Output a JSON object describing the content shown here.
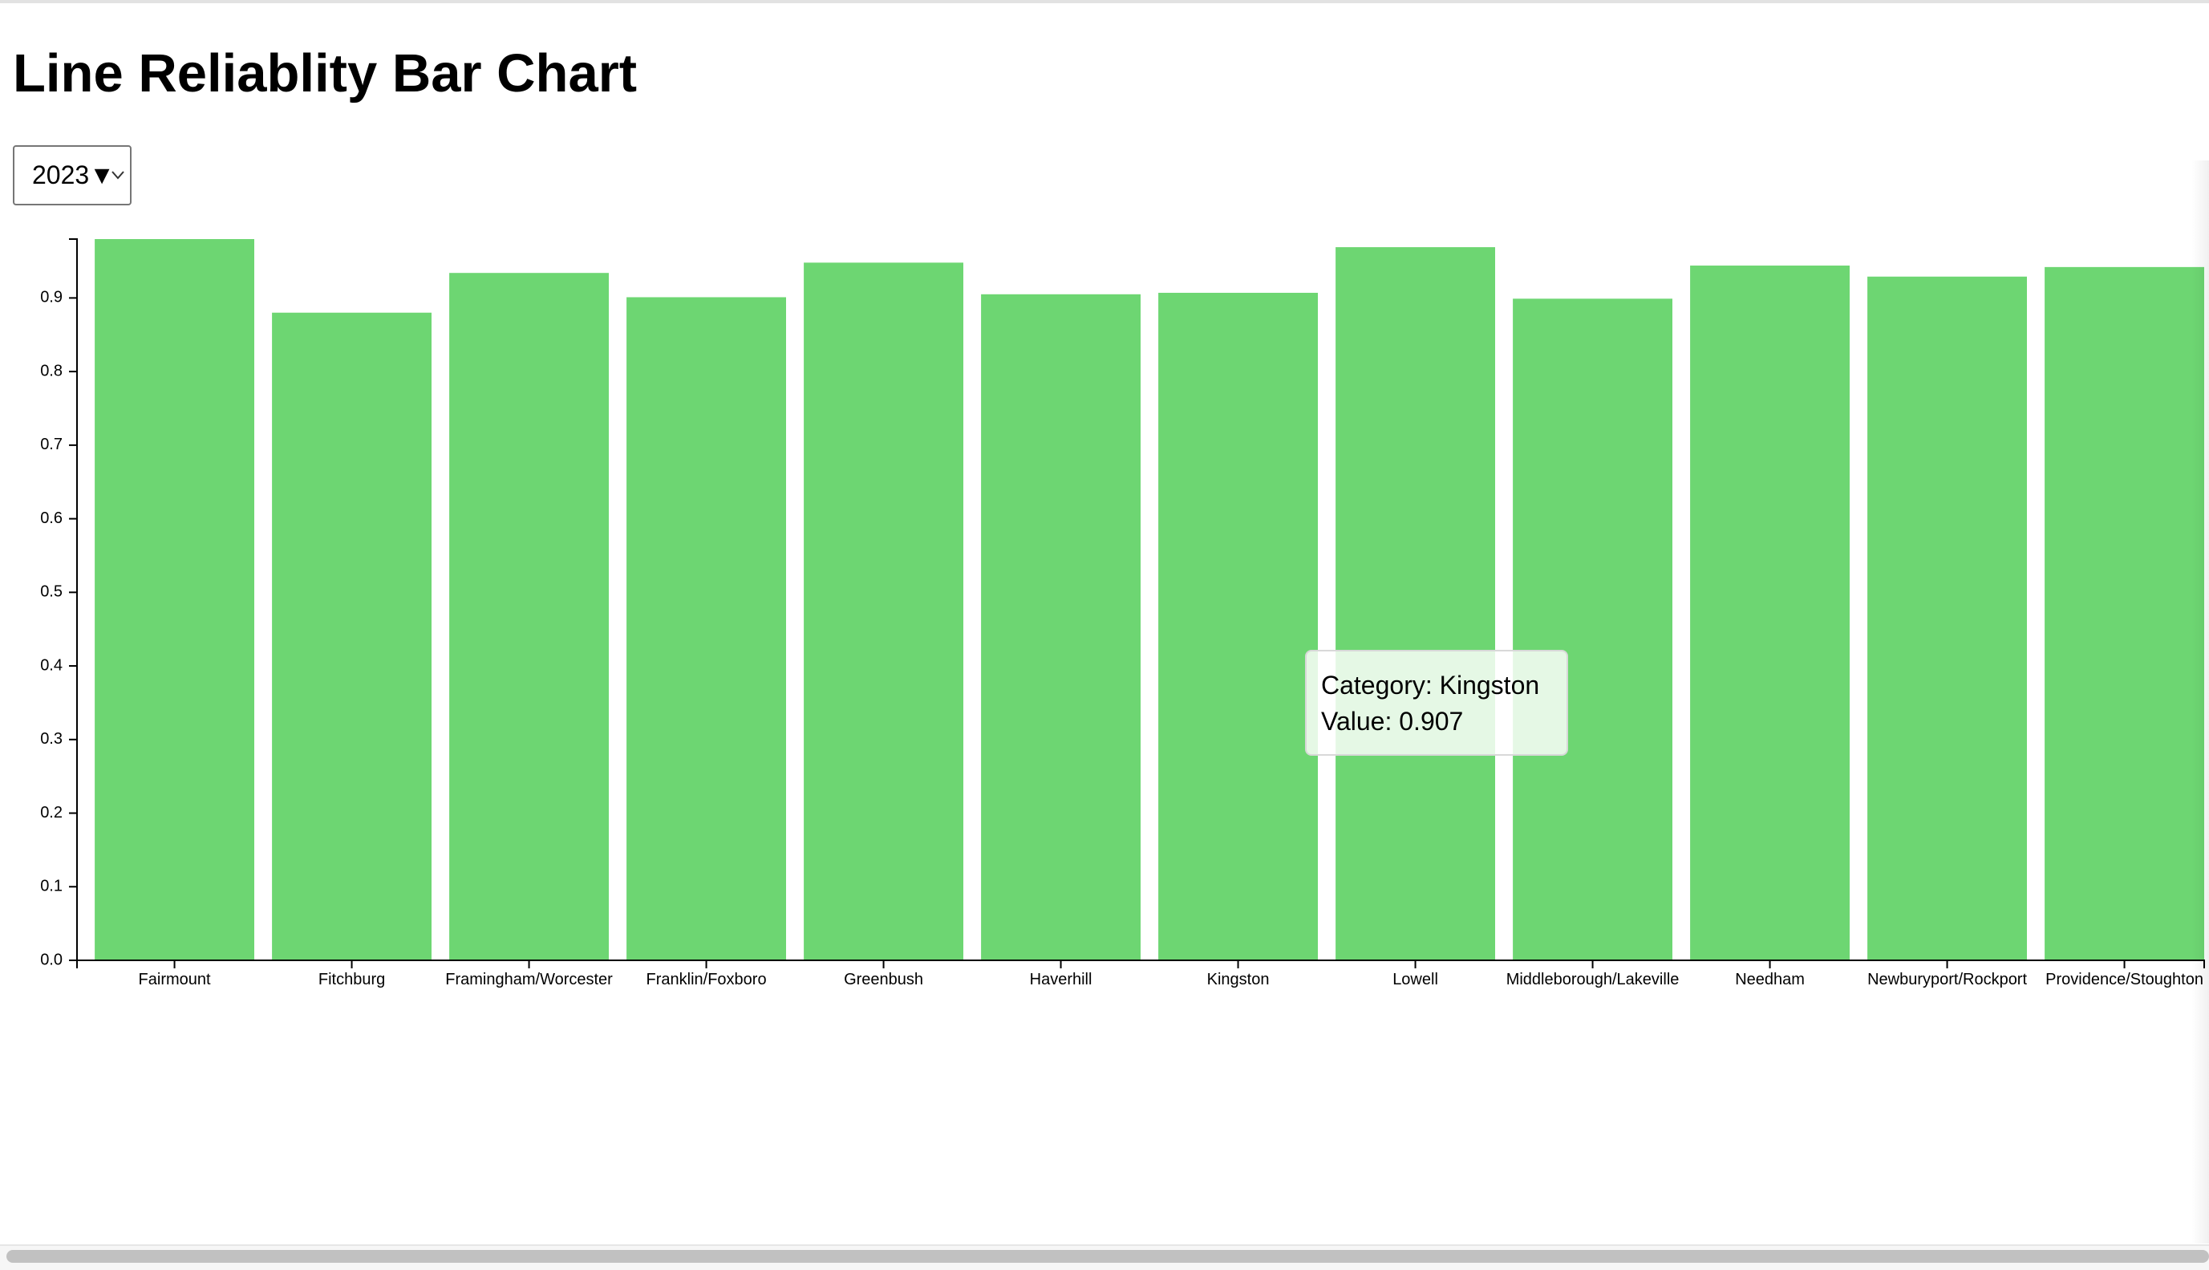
{
  "page": {
    "title": "Line Reliablity Bar Chart"
  },
  "controls": {
    "year_select": {
      "value": "2023▼"
    }
  },
  "tooltip": {
    "category_line": "Category: Kingston",
    "value_line": "Value: 0.907"
  },
  "colors": {
    "bar": "#6dd672",
    "axis": "#000000",
    "background": "#ffffff"
  },
  "chart_data": {
    "type": "bar",
    "title": "Line Reliablity Bar Chart",
    "xlabel": "",
    "ylabel": "",
    "ylim": [
      0,
      0.98
    ],
    "yticks": [
      0.0,
      0.1,
      0.2,
      0.3,
      0.4,
      0.5,
      0.6,
      0.7,
      0.8,
      0.9
    ],
    "ytick_labels": [
      "0.0",
      "0.1",
      "0.2",
      "0.3",
      "0.4",
      "0.5",
      "0.6",
      "0.7",
      "0.8",
      "0.9"
    ],
    "grid": false,
    "categories": [
      "Fairmount",
      "Fitchburg",
      "Framingham/Worcester",
      "Franklin/Foxboro",
      "Greenbush",
      "Haverhill",
      "Kingston",
      "Lowell",
      "Middleborough/Lakeville",
      "Needham",
      "Newburyport/Rockport",
      "Providence/Stoughton"
    ],
    "values": [
      0.98,
      0.88,
      0.934,
      0.901,
      0.948,
      0.905,
      0.907,
      0.969,
      0.899,
      0.944,
      0.929,
      0.942
    ]
  }
}
